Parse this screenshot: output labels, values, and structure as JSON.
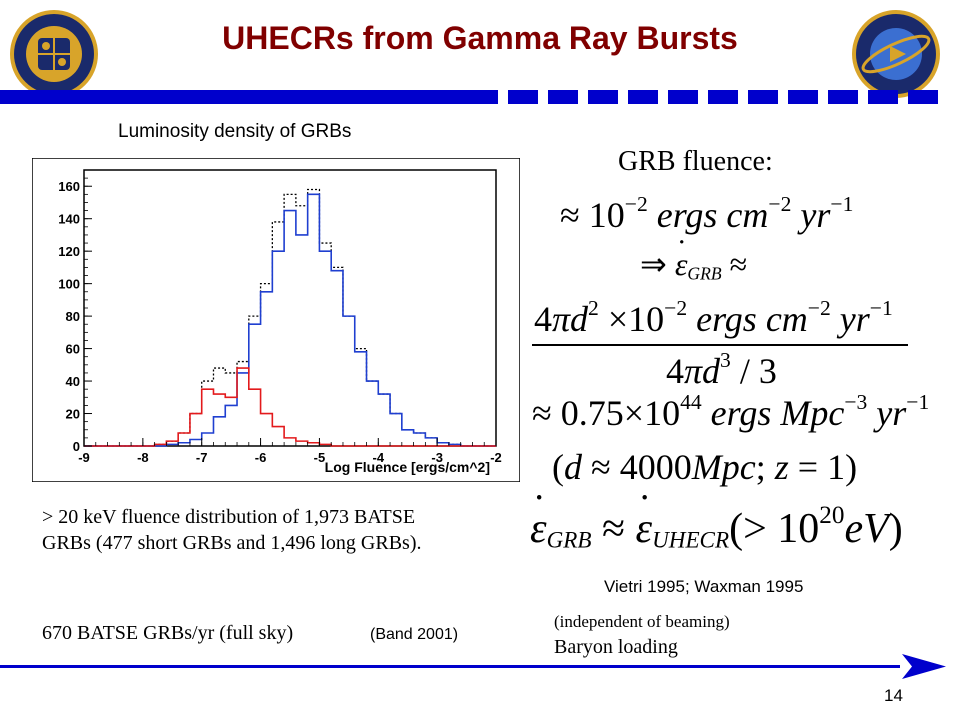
{
  "slide": {
    "title": "UHECRs from Gamma Ray Bursts",
    "page_number": "14",
    "colors": {
      "title": "#800000",
      "bar": "#0000CC",
      "blue_series": "#1f3fd0",
      "red_series": "#e31a1c",
      "black_series": "#000000"
    },
    "logos": {
      "left": "naval-research-laboratory-seal",
      "right": "space-science-division-seal"
    }
  },
  "chart_caption": "Luminosity density of GRBs",
  "chart_data": {
    "type": "line",
    "title": "",
    "xlabel": "Log Fluence [ergs/cm^2]",
    "ylabel": "",
    "xlim": [
      -9,
      -2
    ],
    "ylim": [
      0,
      170
    ],
    "x_ticks": [
      -9,
      -8,
      -7,
      -6,
      -5,
      -4,
      -3,
      -2
    ],
    "y_ticks": [
      0,
      20,
      40,
      60,
      80,
      100,
      120,
      140,
      160
    ],
    "grid": false,
    "legend": "none",
    "bin_width": 0.2,
    "bin_edges_start": [
      -9.0,
      -8.8,
      -8.6,
      -8.4,
      -8.2,
      -8.0,
      -7.8,
      -7.6,
      -7.4,
      -7.2,
      -7.0,
      -6.8,
      -6.6,
      -6.4,
      -6.2,
      -6.0,
      -5.8,
      -5.6,
      -5.4,
      -5.2,
      -5.0,
      -4.8,
      -4.6,
      -4.4,
      -4.2,
      -4.0,
      -3.8,
      -3.6,
      -3.4,
      -3.2,
      -3.0,
      -2.8,
      -2.6,
      -2.4,
      -2.2
    ],
    "series": [
      {
        "style": "dotted",
        "color": "#000000",
        "values": [
          0,
          0,
          0,
          0,
          0,
          0,
          1,
          3,
          8,
          20,
          40,
          48,
          45,
          52,
          80,
          100,
          138,
          155,
          148,
          158,
          125,
          110,
          80,
          60,
          40,
          32,
          20,
          10,
          8,
          5,
          2,
          1,
          0,
          0,
          0
        ]
      },
      {
        "style": "solid",
        "color": "#1f3fd0",
        "values": [
          0,
          0,
          0,
          0,
          0,
          0,
          0,
          1,
          2,
          4,
          8,
          18,
          25,
          45,
          75,
          95,
          120,
          145,
          130,
          155,
          120,
          108,
          80,
          58,
          40,
          32,
          20,
          10,
          8,
          5,
          2,
          1,
          0,
          0,
          0
        ]
      },
      {
        "style": "solid",
        "color": "#e31a1c",
        "values": [
          0,
          0,
          0,
          0,
          0,
          0,
          1,
          3,
          8,
          20,
          35,
          32,
          30,
          48,
          35,
          20,
          12,
          5,
          3,
          2,
          1,
          0,
          0,
          0,
          0,
          0,
          0,
          0,
          0,
          0,
          0,
          0,
          0,
          0,
          0
        ]
      }
    ]
  },
  "fluence": {
    "heading": "GRB fluence:",
    "approx": "≈",
    "implies": "⇒",
    "prefactor": "0.75",
    "exp_44": "44",
    "exp_m2": "−2",
    "exp_m1": "−1",
    "exp_m3": "−3",
    "exp_2": "2",
    "exp_3": "3",
    "exp_20": "20",
    "ten": "10",
    "times": "×",
    "four": "4",
    "pi": "π",
    "d": "d",
    "three": "/ 3",
    "ergs": "ergs",
    "cm": "cm",
    "yr": "yr",
    "mpc": "Mpc",
    "epsilon": "ε",
    "grb": "GRB",
    "uhecr": "UHECR",
    "redshift_note_open": "(",
    "redshift_d": "d",
    "redshift_approx": " ≈ 4000",
    "redshift_mpc": "Mpc",
    "redshift_semicolon": "; ",
    "redshift_z": "z",
    "redshift_close": " = 1)",
    "uhecr_tail_open": "(> 10",
    "uhecr_tail_ev": "eV",
    "uhecr_tail_close": ")"
  },
  "citation_right": "Vietri 1995; Waxman 1995",
  "beaming_note": "(independent of beaming)",
  "baryon_loading": "Baryon loading",
  "description": "> 20 keV fluence distribution of 1,973 BATSE GRBs (477 short GRBs and 1,496 long GRBs).",
  "rate": "670 BATSE GRBs/yr (full sky)",
  "rate_citation": "(Band 2001)"
}
